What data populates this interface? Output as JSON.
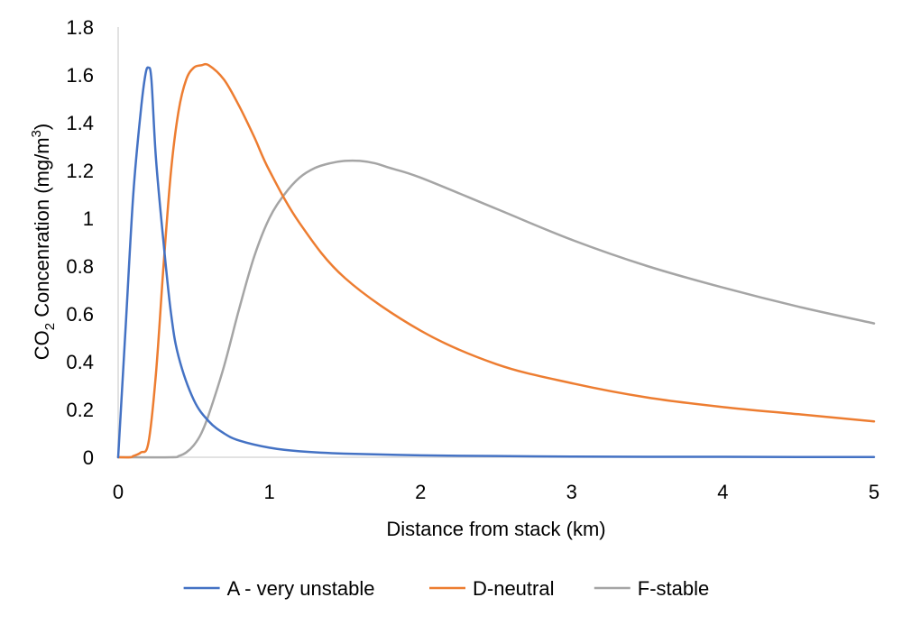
{
  "chart_data": {
    "type": "line",
    "title": "",
    "xlabel": "Distance from stack (km)",
    "ylabel": {
      "prefix": "CO",
      "prefix_subscript": "2",
      "middle": " Concenration (mg/m",
      "superscript": "3",
      "suffix": ")"
    },
    "xlim": [
      0,
      5
    ],
    "ylim": [
      0,
      1.8
    ],
    "x_ticks": [
      0,
      1,
      2,
      3,
      4,
      5
    ],
    "x_tick_labels": [
      "0",
      "1",
      "2",
      "3",
      "4",
      "5"
    ],
    "y_ticks": [
      0,
      0.2,
      0.4,
      0.6,
      0.8,
      1,
      1.2,
      1.4,
      1.6,
      1.8
    ],
    "y_tick_labels": [
      "0",
      "0.2",
      "0.4",
      "0.6",
      "0.8",
      "1",
      "1.2",
      "1.4",
      "1.6",
      "1.8"
    ],
    "grid": false,
    "legend_position": "bottom",
    "series": [
      {
        "name": "A - very unstable",
        "color": "#4472C4",
        "x": [
          0,
          0.05,
          0.1,
          0.15,
          0.18,
          0.2,
          0.22,
          0.25,
          0.3,
          0.35,
          0.4,
          0.5,
          0.6,
          0.7,
          0.8,
          1.0,
          1.2,
          1.5,
          2,
          2.5,
          3,
          3.5,
          4,
          4.5,
          5
        ],
        "y": [
          0,
          0.55,
          1.1,
          1.45,
          1.6,
          1.63,
          1.58,
          1.25,
          0.9,
          0.6,
          0.42,
          0.24,
          0.15,
          0.1,
          0.07,
          0.04,
          0.025,
          0.015,
          0.008,
          0.005,
          0.003,
          0.002,
          0.002,
          0.001,
          0.001
        ]
      },
      {
        "name": "D-neutral",
        "color": "#ED7D31",
        "x": [
          0,
          0.08,
          0.1,
          0.15,
          0.2,
          0.25,
          0.3,
          0.35,
          0.4,
          0.45,
          0.5,
          0.55,
          0.6,
          0.7,
          0.8,
          0.9,
          1.0,
          1.2,
          1.5,
          2,
          2.5,
          3,
          3.5,
          4,
          4.5,
          5
        ],
        "y": [
          0,
          0,
          0.005,
          0.02,
          0.06,
          0.35,
          0.8,
          1.2,
          1.45,
          1.58,
          1.63,
          1.64,
          1.64,
          1.58,
          1.47,
          1.34,
          1.2,
          0.98,
          0.75,
          0.53,
          0.39,
          0.31,
          0.25,
          0.21,
          0.18,
          0.15
        ]
      },
      {
        "name": "F-stable",
        "color": "#A5A5A5",
        "x": [
          0,
          0.35,
          0.4,
          0.45,
          0.5,
          0.55,
          0.6,
          0.7,
          0.8,
          0.9,
          1.0,
          1.1,
          1.2,
          1.3,
          1.4,
          1.5,
          1.6,
          1.7,
          1.8,
          2.0,
          2.5,
          3,
          3.5,
          4,
          4.5,
          5
        ],
        "y": [
          0,
          0,
          0.005,
          0.02,
          0.05,
          0.1,
          0.18,
          0.38,
          0.62,
          0.84,
          1.0,
          1.1,
          1.17,
          1.21,
          1.23,
          1.24,
          1.24,
          1.23,
          1.21,
          1.17,
          1.04,
          0.91,
          0.8,
          0.71,
          0.63,
          0.56
        ]
      }
    ]
  }
}
